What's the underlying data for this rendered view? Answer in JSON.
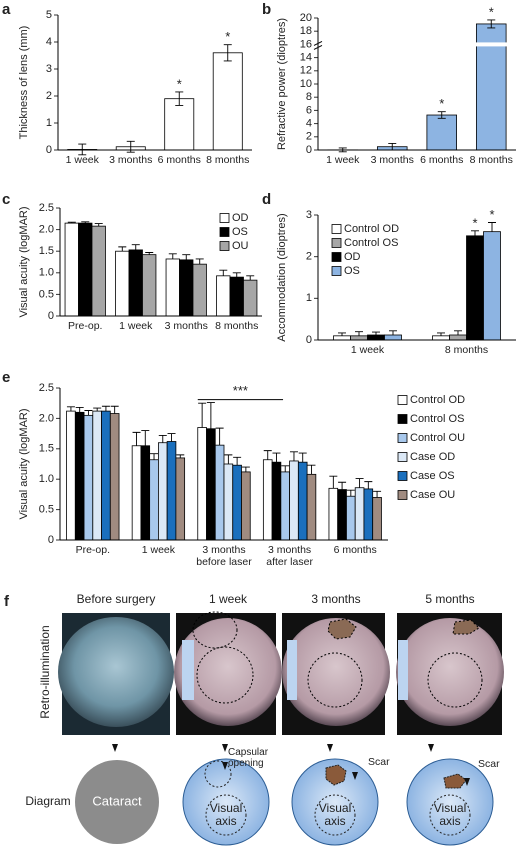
{
  "chart_data": [
    {
      "type": "bar",
      "panel": "a",
      "ylabel": "Thickness of lens (mm)",
      "categories": [
        "1 week",
        "3 months",
        "6 months",
        "8 months"
      ],
      "values": [
        0.02,
        0.12,
        1.9,
        3.6
      ],
      "errors": [
        0.2,
        0.2,
        0.25,
        0.3
      ],
      "color": "#ffffff",
      "error_style": "both",
      "ylim": [
        0,
        5
      ],
      "yticks": [
        0,
        1,
        2,
        3,
        4,
        5
      ],
      "annotations": [
        {
          "text": "*",
          "category": "6 months"
        },
        {
          "text": "*",
          "category": "8 months"
        }
      ]
    },
    {
      "type": "bar",
      "panel": "b",
      "ylabel": "Refractive power (dioptres)",
      "categories": [
        "1 week",
        "3 months",
        "6 months",
        "8 months"
      ],
      "values": [
        0.02,
        0.5,
        5.3,
        19.1
      ],
      "errors": [
        0.3,
        0.5,
        0.5,
        0.6
      ],
      "color": "#8db4e2",
      "error_style": "both",
      "axis_break": 16,
      "ylim": [
        0,
        20
      ],
      "yticks": [
        0,
        2,
        4,
        6,
        8,
        10,
        12,
        14,
        16,
        18,
        20
      ],
      "annotations": [
        {
          "text": "*",
          "category": "6 months"
        },
        {
          "text": "*",
          "category": "8 months"
        }
      ]
    },
    {
      "type": "bar",
      "panel": "c",
      "ylabel": "Visual acuity (logMAR)",
      "categories": [
        "Pre-op.",
        "1 week",
        "3 months",
        "8 months"
      ],
      "series": [
        {
          "name": "OD",
          "color": "#ffffff",
          "values": [
            2.15,
            1.5,
            1.32,
            0.93
          ],
          "errors": [
            0.02,
            0.1,
            0.12,
            0.13
          ]
        },
        {
          "name": "OS",
          "color": "#000000",
          "values": [
            2.15,
            1.53,
            1.3,
            0.9
          ],
          "errors": [
            0.03,
            0.12,
            0.12,
            0.1
          ]
        },
        {
          "name": "OU",
          "color": "#a6a6a6",
          "values": [
            2.08,
            1.42,
            1.2,
            0.83
          ],
          "errors": [
            0.06,
            0.05,
            0.12,
            0.1
          ]
        }
      ],
      "error_style": "up",
      "legend": "top-right",
      "ylim": [
        0,
        2.5
      ],
      "yticks": [
        0,
        0.5,
        {
          "value": 1,
          "label": "1.0"
        },
        1.5,
        {
          "value": 2,
          "label": "2.0"
        },
        2.5
      ]
    },
    {
      "type": "bar",
      "panel": "d",
      "ylabel": "Accommodation (dioptres)",
      "categories": [
        "1 week",
        "8 months"
      ],
      "series": [
        {
          "name": "Control OD",
          "color": "#ffffff",
          "values": [
            0.1,
            0.1
          ],
          "errors": [
            0.07,
            0.07
          ]
        },
        {
          "name": "Control OS",
          "color": "#a6a6a6",
          "values": [
            0.1,
            0.12
          ],
          "errors": [
            0.1,
            0.1
          ]
        },
        {
          "name": "OD",
          "color": "#000000",
          "values": [
            0.12,
            2.5
          ],
          "errors": [
            0.07,
            0.12
          ]
        },
        {
          "name": "OS",
          "color": "#8db4e2",
          "values": [
            0.12,
            2.6
          ],
          "errors": [
            0.1,
            0.22
          ]
        }
      ],
      "error_style": "up",
      "legend": "top-left",
      "ylim": [
        0,
        3
      ],
      "yticks": [
        0,
        1,
        2,
        3
      ],
      "annotations": [
        {
          "text": "*",
          "category": "8 months",
          "series": "OD"
        },
        {
          "text": "*",
          "category": "8 months",
          "series": "OS"
        }
      ]
    },
    {
      "type": "bar",
      "panel": "e",
      "ylabel": "Visual acuity (logMAR)",
      "categories": [
        "Pre-op.",
        "1 week",
        "3 months before laser",
        "3 months after laser",
        "6 months"
      ],
      "series": [
        {
          "name": "Control OD",
          "color": "#ffffff",
          "values": [
            2.12,
            1.55,
            1.85,
            1.32,
            0.85
          ],
          "errors": [
            0.07,
            0.22,
            0.4,
            0.15,
            0.2
          ]
        },
        {
          "name": "Control OS",
          "color": "#000000",
          "values": [
            2.1,
            1.55,
            1.83,
            1.28,
            0.83
          ],
          "errors": [
            0.08,
            0.25,
            0.43,
            0.15,
            0.12
          ]
        },
        {
          "name": "Control OU",
          "color": "#a8c8ec",
          "values": [
            2.05,
            1.32,
            1.56,
            1.12,
            0.72
          ],
          "errors": [
            0.08,
            0.1,
            0.28,
            0.1,
            0.1
          ]
        },
        {
          "name": "Case OD",
          "color": "#dbe8f6",
          "values": [
            2.12,
            1.6,
            1.25,
            1.3,
            0.86
          ],
          "errors": [
            0.05,
            0.12,
            0.15,
            0.15,
            0.15
          ]
        },
        {
          "name": "Case OS",
          "color": "#1a6fbd",
          "values": [
            2.12,
            1.62,
            1.23,
            1.28,
            0.84
          ],
          "errors": [
            0.08,
            0.13,
            0.13,
            0.15,
            0.12
          ]
        },
        {
          "name": "Case OU",
          "color": "#a08b80",
          "values": [
            2.08,
            1.35,
            1.12,
            1.08,
            0.7
          ],
          "errors": [
            0.12,
            0.05,
            0.08,
            0.15,
            0.1
          ]
        }
      ],
      "error_style": "up",
      "legend": "right",
      "ylim": [
        0,
        2.5
      ],
      "yticks": [
        0,
        0.5,
        {
          "value": 1,
          "label": "1.0"
        },
        1.5,
        {
          "value": 2,
          "label": "2.0"
        },
        2.5
      ],
      "annotations": [
        {
          "text": "***",
          "category": "3 months before laser"
        }
      ]
    }
  ],
  "panel_f": {
    "panel": "f",
    "columns": [
      "Before surgery",
      "1 week",
      "3 months",
      "5 months"
    ],
    "row_labels": [
      "Retro-illumination",
      "Diagram"
    ],
    "cataract": "Cataract",
    "capsular_opening": "Capsular opening",
    "visual_axis": "Visual axis",
    "scar": "Scar"
  }
}
